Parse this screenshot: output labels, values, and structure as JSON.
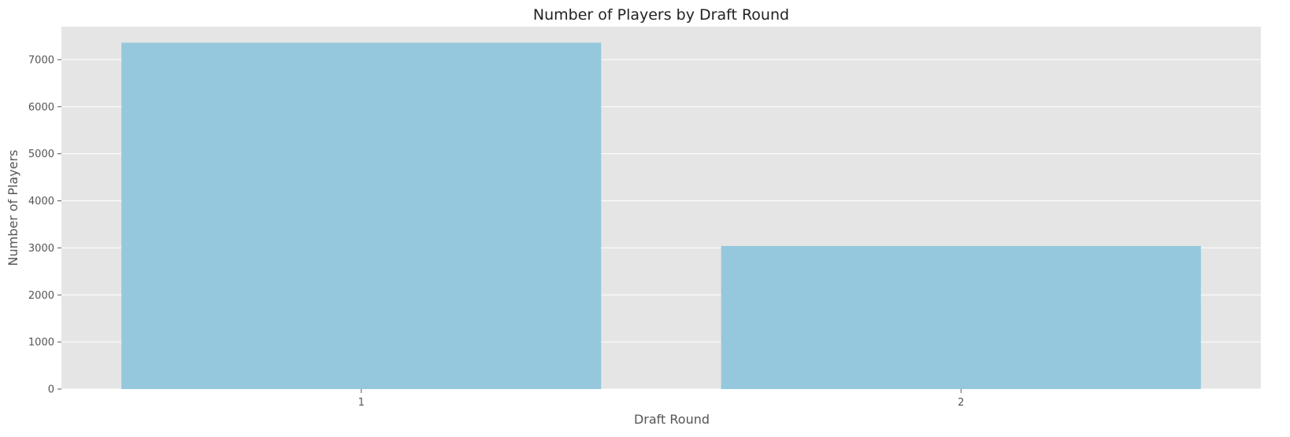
{
  "chart_data": {
    "type": "bar",
    "title": "Number of Players by Draft Round",
    "xlabel": "Draft Round",
    "ylabel": "Number of Players",
    "categories": [
      "1",
      "2"
    ],
    "values": [
      7360,
      3040
    ],
    "ylim": [
      0,
      7700
    ],
    "yticks": [
      0,
      1000,
      2000,
      3000,
      4000,
      5000,
      6000,
      7000
    ],
    "ytick_labels": [
      "0",
      "1000",
      "2000",
      "3000",
      "4000",
      "5000",
      "6000",
      "7000"
    ],
    "grid": true,
    "legend": "none",
    "colors": {
      "bar": "#96c8dd",
      "plot_background": "#e5e5e5",
      "grid": "#ffffff"
    }
  }
}
